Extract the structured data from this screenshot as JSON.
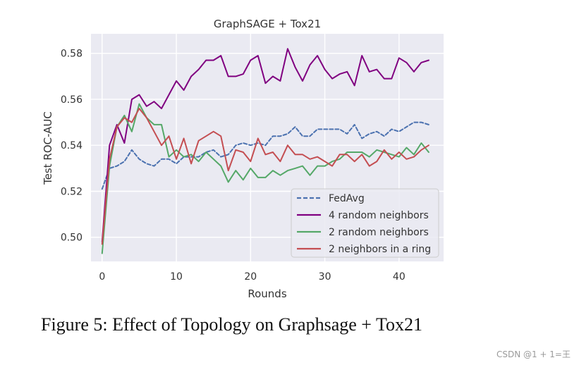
{
  "chart_data": {
    "type": "line",
    "title": "GraphSAGE + Tox21",
    "xlabel": "Rounds",
    "ylabel": "Test ROC-AUC",
    "xlim": [
      -1.5,
      46
    ],
    "ylim": [
      0.4895,
      0.5885
    ],
    "xticks": [
      0,
      10,
      20,
      30,
      40
    ],
    "yticks": [
      0.5,
      0.52,
      0.54,
      0.56,
      0.58
    ],
    "ytick_labels": [
      "0.50",
      "0.52",
      "0.54",
      "0.56",
      "0.58"
    ],
    "grid": true,
    "legend_position": "lower-right",
    "x": [
      0,
      1,
      2,
      3,
      4,
      5,
      6,
      7,
      8,
      9,
      10,
      11,
      12,
      13,
      14,
      15,
      16,
      17,
      18,
      19,
      20,
      21,
      22,
      23,
      24,
      25,
      26,
      27,
      28,
      29,
      30,
      31,
      32,
      33,
      34,
      35,
      36,
      37,
      38,
      39,
      40,
      41,
      42,
      43,
      44
    ],
    "series": [
      {
        "name": "FedAvg",
        "color": "#4c72b0",
        "dash": "dashed",
        "values": [
          0.521,
          0.53,
          0.531,
          0.533,
          0.538,
          0.534,
          0.532,
          0.531,
          0.534,
          0.534,
          0.532,
          0.535,
          0.535,
          0.535,
          0.537,
          0.538,
          0.535,
          0.536,
          0.54,
          0.541,
          0.54,
          0.541,
          0.54,
          0.544,
          0.544,
          0.545,
          0.548,
          0.544,
          0.544,
          0.547,
          0.547,
          0.547,
          0.547,
          0.545,
          0.549,
          0.543,
          0.545,
          0.546,
          0.544,
          0.547,
          0.546,
          0.548,
          0.55,
          0.55,
          0.549
        ]
      },
      {
        "name": "4 random neighbors",
        "color": "#800080",
        "dash": "solid",
        "values": [
          0.498,
          0.54,
          0.549,
          0.541,
          0.56,
          0.562,
          0.557,
          0.559,
          0.556,
          0.562,
          0.568,
          0.564,
          0.57,
          0.573,
          0.577,
          0.577,
          0.579,
          0.57,
          0.57,
          0.571,
          0.577,
          0.579,
          0.567,
          0.57,
          0.568,
          0.582,
          0.574,
          0.568,
          0.575,
          0.579,
          0.573,
          0.569,
          0.571,
          0.572,
          0.566,
          0.579,
          0.572,
          0.573,
          0.569,
          0.569,
          0.578,
          0.576,
          0.572,
          0.576,
          0.577
        ]
      },
      {
        "name": "2 random neighbors",
        "color": "#55a868",
        "dash": "solid",
        "values": [
          0.493,
          0.531,
          0.548,
          0.553,
          0.546,
          0.558,
          0.552,
          0.549,
          0.549,
          0.535,
          0.538,
          0.535,
          0.536,
          0.533,
          0.537,
          0.534,
          0.531,
          0.524,
          0.529,
          0.525,
          0.53,
          0.526,
          0.526,
          0.529,
          0.527,
          0.529,
          0.53,
          0.531,
          0.527,
          0.531,
          0.531,
          0.533,
          0.534,
          0.537,
          0.537,
          0.537,
          0.535,
          0.538,
          0.537,
          0.536,
          0.535,
          0.539,
          0.536,
          0.541,
          0.537
        ]
      },
      {
        "name": "2 neighbors in a ring",
        "color": "#c44e52",
        "dash": "solid",
        "values": [
          0.497,
          0.534,
          0.548,
          0.552,
          0.55,
          0.556,
          0.552,
          0.546,
          0.54,
          0.544,
          0.534,
          0.543,
          0.532,
          0.542,
          0.544,
          0.546,
          0.544,
          0.529,
          0.538,
          0.537,
          0.533,
          0.543,
          0.536,
          0.537,
          0.533,
          0.54,
          0.536,
          0.536,
          0.534,
          0.535,
          0.533,
          0.531,
          0.536,
          0.536,
          0.533,
          0.536,
          0.531,
          0.533,
          0.538,
          0.534,
          0.537,
          0.534,
          0.535,
          0.538,
          0.54
        ]
      }
    ]
  },
  "caption": "Figure 5: Effect of Topology on Graphsage + Tox21",
  "watermark": "CSDN @1 + 1=王"
}
